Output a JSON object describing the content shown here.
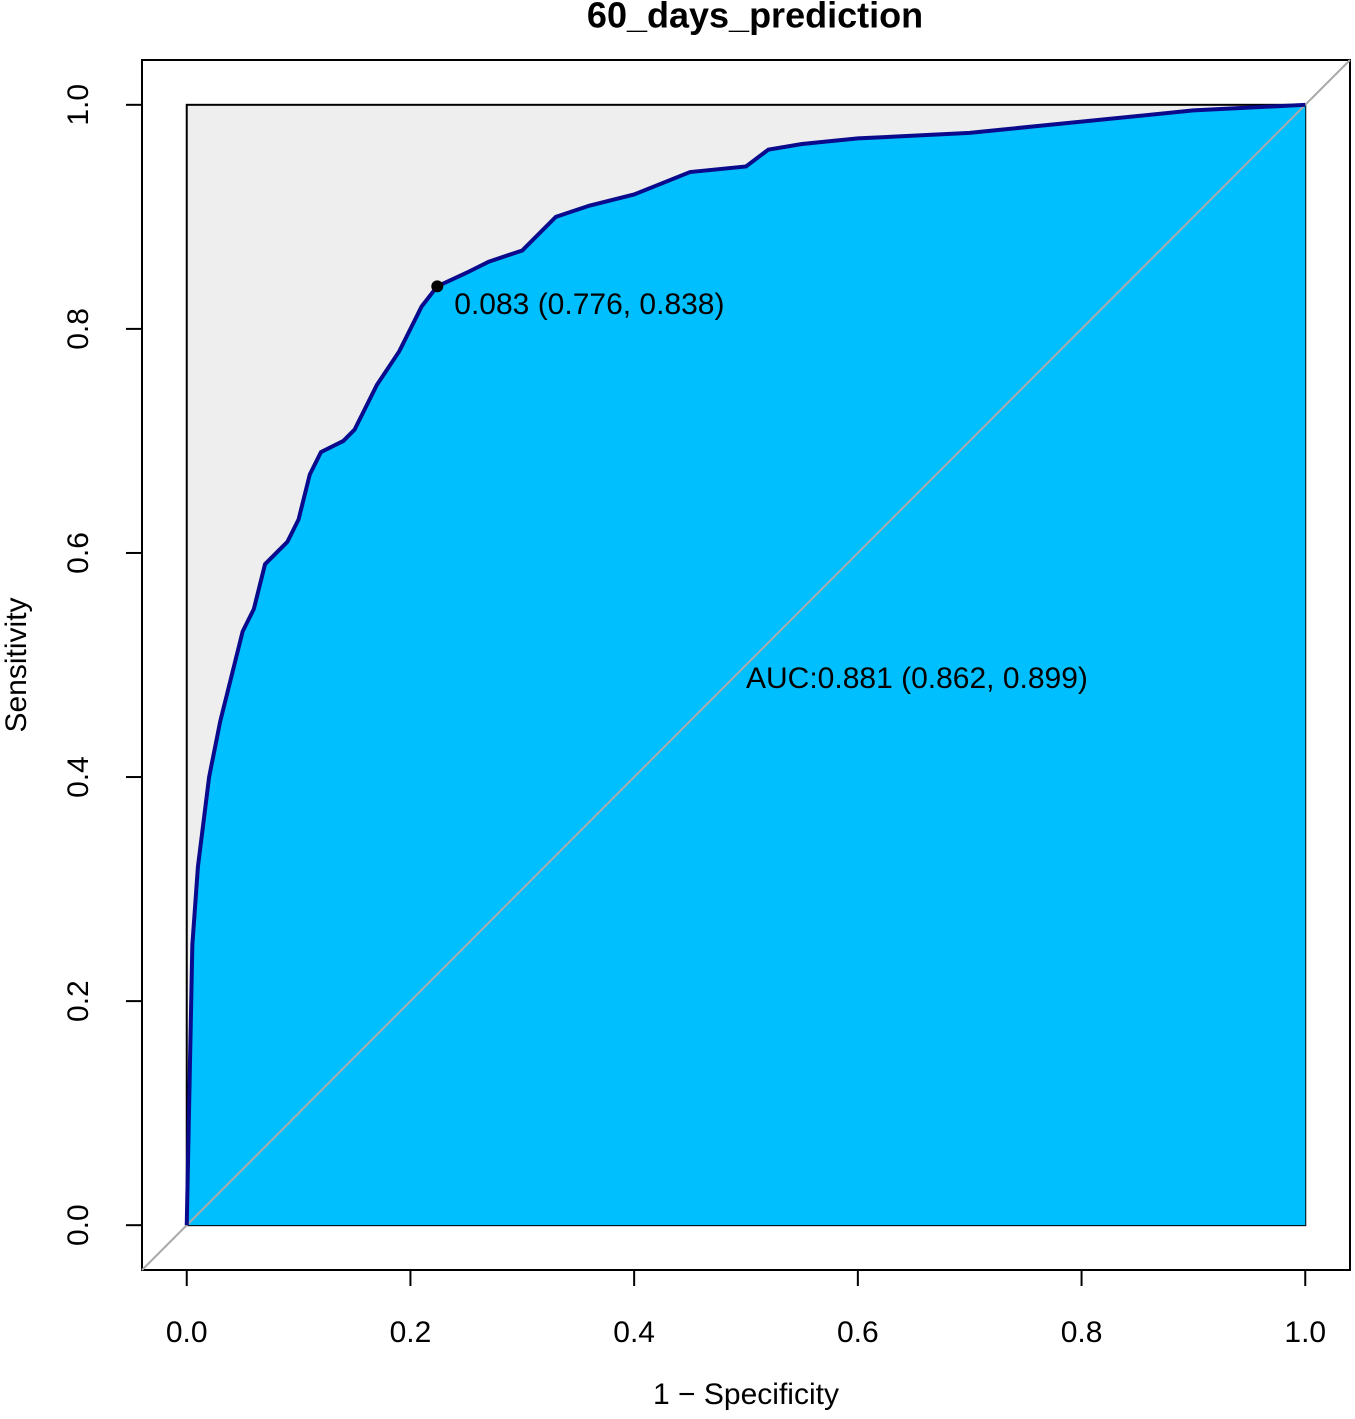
{
  "chart_data": {
    "type": "roc",
    "title": "60_days_prediction",
    "x_label": "1 − Specificity",
    "y_label": "Sensitivity",
    "x": [
      0,
      0.002,
      0.005,
      0.01,
      0.015,
      0.02,
      0.03,
      0.04,
      0.05,
      0.06,
      0.07,
      0.09,
      0.1,
      0.11,
      0.12,
      0.14,
      0.15,
      0.17,
      0.19,
      0.2,
      0.21,
      0.224,
      0.25,
      0.27,
      0.3,
      0.33,
      0.36,
      0.4,
      0.45,
      0.5,
      0.52,
      0.55,
      0.6,
      0.7,
      0.8,
      0.9,
      1.0
    ],
    "values": [
      0,
      0.1,
      0.25,
      0.32,
      0.36,
      0.4,
      0.45,
      0.49,
      0.53,
      0.55,
      0.59,
      0.61,
      0.63,
      0.67,
      0.69,
      0.7,
      0.71,
      0.75,
      0.78,
      0.8,
      0.82,
      0.838,
      0.85,
      0.86,
      0.87,
      0.9,
      0.91,
      0.92,
      0.94,
      0.945,
      0.96,
      0.965,
      0.97,
      0.975,
      0.985,
      0.995,
      1.0
    ],
    "color": "#0a0a8c",
    "fill_color": "#00bfff",
    "threshold_point": {
      "x": 0.224,
      "y": 0.838,
      "label": "0.083 (0.776, 0.838)"
    },
    "auc_label": "AUC:0.881 (0.862, 0.899)",
    "xlim": [
      -0.04,
      1.04
    ],
    "ylim": [
      -0.04,
      1.04
    ],
    "xticks": [
      {
        "value": 0,
        "label": "0.0"
      },
      0.2,
      0.4,
      0.6,
      0.8,
      {
        "value": 1,
        "label": "1.0"
      }
    ],
    "yticks": [
      {
        "value": 0,
        "label": "0.0"
      },
      0.2,
      0.4,
      0.6,
      0.8,
      {
        "value": 1,
        "label": "1.0"
      }
    ]
  }
}
